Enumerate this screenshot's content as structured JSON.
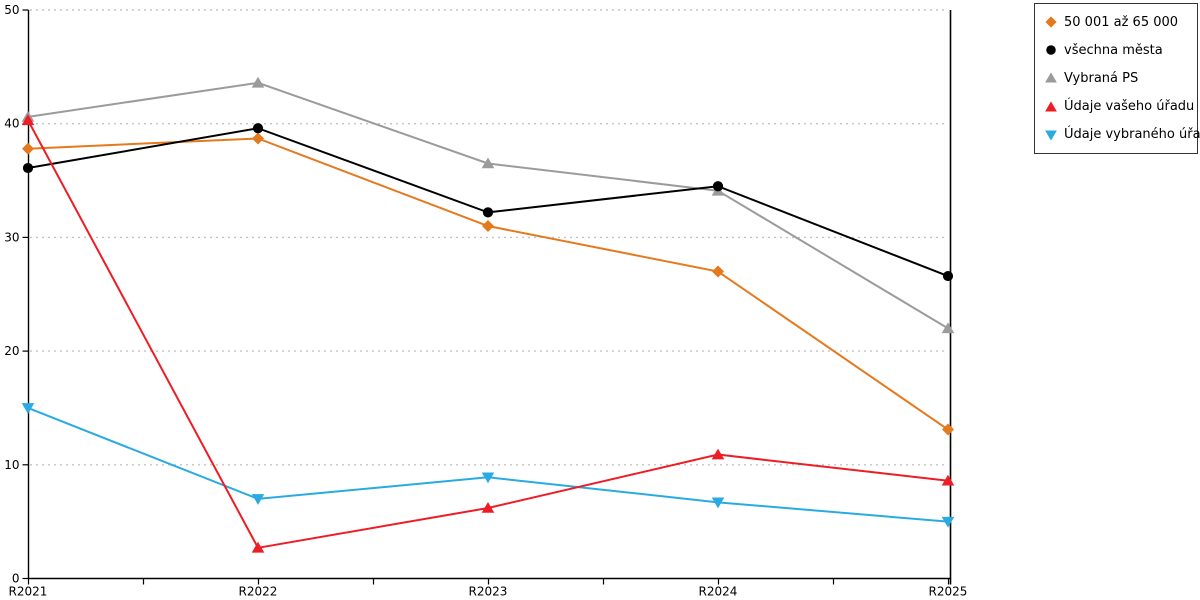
{
  "chart_data": {
    "type": "line",
    "title": "",
    "xlabel": "",
    "ylabel": "",
    "categories": [
      "R2021",
      "R2022",
      "R2023",
      "R2024",
      "R2025"
    ],
    "series": [
      {
        "name": "50 001 až 65 000",
        "marker": "diamond",
        "color": "#E5791E",
        "values": [
          37.8,
          38.7,
          31.0,
          27.0,
          13.1
        ]
      },
      {
        "name": "všechna města",
        "marker": "circle",
        "color": "#000000",
        "values": [
          36.1,
          39.6,
          32.2,
          34.5,
          26.6
        ]
      },
      {
        "name": "Vybraná PS",
        "marker": "triangle-up",
        "color": "#9B9B9B",
        "values": [
          40.6,
          43.6,
          36.5,
          34.1,
          22.0
        ]
      },
      {
        "name": "Údaje vašeho úřadu",
        "marker": "triangle-up",
        "color": "#EE1C25",
        "values": [
          40.3,
          2.7,
          6.2,
          10.9,
          8.6
        ]
      },
      {
        "name": "Údaje vybraného úřadu",
        "marker": "triangle-down",
        "color": "#29ABE2",
        "values": [
          15.0,
          7.0,
          8.9,
          6.7,
          5.0
        ]
      }
    ],
    "ylim": [
      0,
      50
    ],
    "yticks": [
      0,
      10,
      20,
      30,
      40,
      50
    ],
    "grid": "horizontal-dotted",
    "legend_position": "top-right"
  },
  "colors": {
    "background": "#ffffff",
    "axis": "#000000",
    "grid": "#c4c4c4",
    "tick_label": "#000000",
    "legend_border": "#333333"
  }
}
